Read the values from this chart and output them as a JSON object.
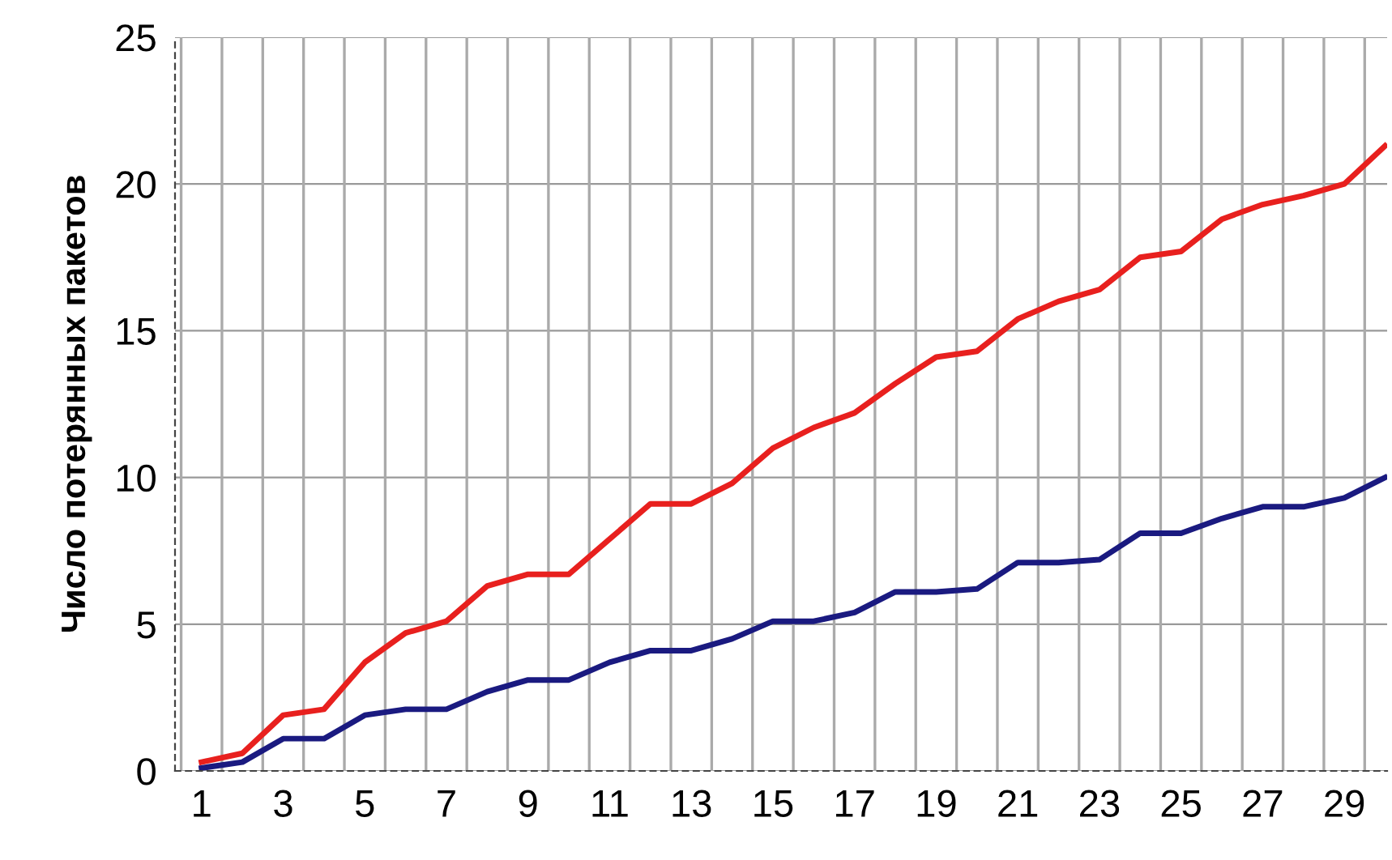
{
  "chart_data": {
    "type": "line",
    "ylabel": "Число потерянных пакетов",
    "categories": [
      "1",
      null,
      "3",
      null,
      "5",
      null,
      "7",
      null,
      "9",
      null,
      "11",
      null,
      "13",
      null,
      "15",
      null,
      "17",
      null,
      "19",
      null,
      "21",
      null,
      "23",
      null,
      "25",
      null,
      "27",
      null,
      "29",
      null
    ],
    "series": [
      {
        "color": "#e8201e",
        "values": [
          0.3,
          0.6,
          1.9,
          2.1,
          3.7,
          4.7,
          5.1,
          6.3,
          6.7,
          6.7,
          7.9,
          9.1,
          9.1,
          9.8,
          11.0,
          11.7,
          12.2,
          13.2,
          14.1,
          14.3,
          15.4,
          16.0,
          16.4,
          17.5,
          17.7,
          18.8,
          19.3,
          19.6,
          20.0,
          21.3
        ]
      },
      {
        "color": "#1a1a80",
        "values": [
          0.1,
          0.3,
          1.1,
          1.1,
          1.9,
          2.1,
          2.1,
          2.7,
          3.1,
          3.1,
          3.7,
          4.1,
          4.1,
          4.5,
          5.1,
          5.1,
          5.4,
          6.1,
          6.1,
          6.2,
          7.1,
          7.1,
          7.2,
          8.1,
          8.1,
          8.6,
          9.0,
          9.0,
          9.3,
          10.0
        ]
      }
    ],
    "ylim": [
      0,
      25
    ],
    "yticks": [
      0,
      5,
      10,
      15,
      20,
      25
    ],
    "grid": true,
    "marker": "none",
    "line_style": "solid",
    "legend": false
  }
}
